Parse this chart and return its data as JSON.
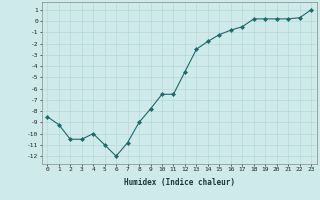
{
  "x": [
    0,
    1,
    2,
    3,
    4,
    5,
    6,
    7,
    8,
    9,
    10,
    11,
    12,
    13,
    14,
    15,
    16,
    17,
    18,
    19,
    20,
    21,
    22,
    23
  ],
  "y": [
    -8.5,
    -9.2,
    -10.5,
    -10.5,
    -10.0,
    -11.0,
    -12.0,
    -10.8,
    -9.0,
    -7.8,
    -6.5,
    -6.5,
    -4.5,
    -2.5,
    -1.8,
    -1.2,
    -0.8,
    -0.5,
    0.2,
    0.2,
    0.2,
    0.2,
    0.3,
    1.0
  ],
  "line_color": "#1a6b6b",
  "marker": "D",
  "marker_size": 2,
  "bg_color": "#ceeaea",
  "grid_color": "#b8d8d8",
  "xlabel": "Humidex (Indice chaleur)",
  "xlim": [
    -0.5,
    23.5
  ],
  "ylim": [
    -12.7,
    1.7
  ],
  "yticks": [
    1,
    0,
    -1,
    -2,
    -3,
    -4,
    -5,
    -6,
    -7,
    -8,
    -9,
    -10,
    -11,
    -12
  ],
  "xticks": [
    0,
    1,
    2,
    3,
    4,
    5,
    6,
    7,
    8,
    9,
    10,
    11,
    12,
    13,
    14,
    15,
    16,
    17,
    18,
    19,
    20,
    21,
    22,
    23
  ]
}
